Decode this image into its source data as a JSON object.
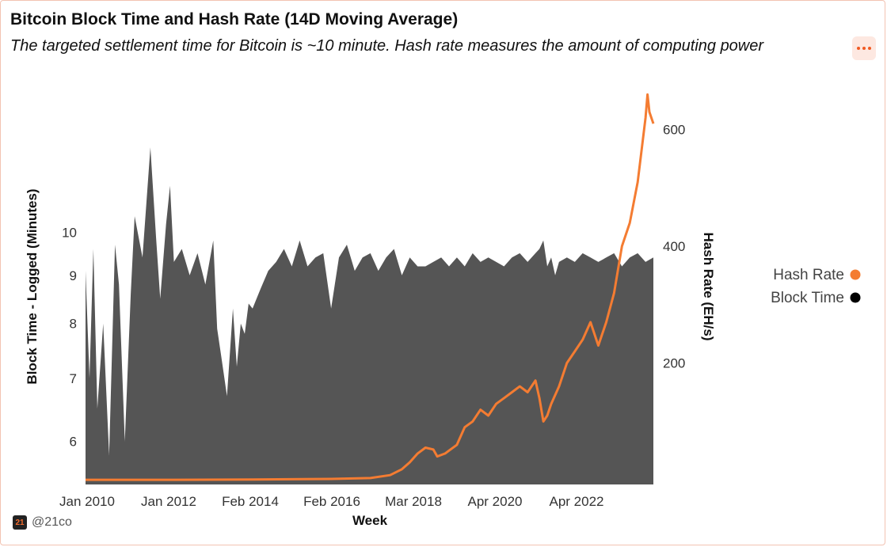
{
  "header": {
    "title": "Bitcoin Block Time and Hash Rate (14D Moving Average)",
    "subtitle": "The targeted settlement time for Bitcoin is ~10 minute. Hash rate measures the amount of computing power"
  },
  "menu": {
    "icon": "more-horizontal-icon",
    "accent": "#f15a22"
  },
  "footer": {
    "logo_text": "21",
    "handle": "@21co"
  },
  "chart_data": {
    "type": "area",
    "title": "Bitcoin Block Time and Hash Rate (14D Moving Average)",
    "xlabel": "Week",
    "ylabel_left": "Block Time - Logged (Minutes)",
    "ylabel_right": "Hash Rate (EH/s)",
    "x_ticks": [
      "Jan 2010",
      "Jan 2012",
      "Feb 2014",
      "Feb 2016",
      "Mar 2018",
      "Apr 2020",
      "Apr 2022"
    ],
    "x_range": [
      2009.75,
      2024.2
    ],
    "y_left_scale": "log",
    "y_left_range": [
      5.4,
      14.2
    ],
    "y_left_ticks": [
      6,
      7,
      8,
      9,
      10
    ],
    "y_right_range": [
      -8,
      670
    ],
    "y_right_ticks": [
      200,
      400,
      600
    ],
    "legend": [
      {
        "name": "Hash Rate",
        "color": "#f47c32"
      },
      {
        "name": "Block Time",
        "color": "#000000"
      }
    ],
    "series": [
      {
        "name": "Block Time",
        "axis": "left",
        "color": "#555555",
        "x": [
          2009.75,
          2009.85,
          2009.95,
          2010.05,
          2010.2,
          2010.35,
          2010.5,
          2010.6,
          2010.75,
          2010.9,
          2011.0,
          2011.2,
          2011.4,
          2011.55,
          2011.65,
          2011.8,
          2011.9,
          2012.0,
          2012.2,
          2012.4,
          2012.6,
          2012.8,
          2013.0,
          2013.1,
          2013.2,
          2013.35,
          2013.5,
          2013.6,
          2013.7,
          2013.8,
          2013.9,
          2014.0,
          2014.2,
          2014.4,
          2014.6,
          2014.8,
          2015.0,
          2015.2,
          2015.4,
          2015.6,
          2015.8,
          2016.0,
          2016.2,
          2016.4,
          2016.6,
          2016.8,
          2017.0,
          2017.2,
          2017.4,
          2017.6,
          2017.8,
          2018.0,
          2018.2,
          2018.4,
          2018.6,
          2018.8,
          2019.0,
          2019.2,
          2019.4,
          2019.6,
          2019.8,
          2020.0,
          2020.2,
          2020.4,
          2020.6,
          2020.8,
          2021.0,
          2021.2,
          2021.3,
          2021.4,
          2021.5,
          2021.6,
          2021.7,
          2021.8,
          2022.0,
          2022.2,
          2022.4,
          2022.6,
          2022.8,
          2023.0,
          2023.2,
          2023.4,
          2023.6,
          2023.8,
          2024.0,
          2024.2
        ],
        "values": [
          9.1,
          7.0,
          9.6,
          6.5,
          8.0,
          5.8,
          9.7,
          8.8,
          6.0,
          8.6,
          10.4,
          9.4,
          12.3,
          9.8,
          8.5,
          10.2,
          11.2,
          9.3,
          9.6,
          9.0,
          9.5,
          8.8,
          9.8,
          7.9,
          7.4,
          6.7,
          8.3,
          7.2,
          8.0,
          7.8,
          8.4,
          8.3,
          8.7,
          9.1,
          9.3,
          9.6,
          9.2,
          9.8,
          9.2,
          9.4,
          9.5,
          8.3,
          9.4,
          9.7,
          9.1,
          9.4,
          9.5,
          9.1,
          9.4,
          9.6,
          9.0,
          9.4,
          9.2,
          9.2,
          9.3,
          9.4,
          9.2,
          9.4,
          9.2,
          9.5,
          9.3,
          9.4,
          9.3,
          9.2,
          9.4,
          9.5,
          9.3,
          9.5,
          9.6,
          9.8,
          9.2,
          9.4,
          9.0,
          9.3,
          9.4,
          9.3,
          9.5,
          9.4,
          9.3,
          9.4,
          9.5,
          9.2,
          9.4,
          9.5,
          9.3,
          9.4
        ]
      },
      {
        "name": "Hash Rate",
        "axis": "right",
        "color": "#f47c32",
        "x": [
          2009.75,
          2012.0,
          2014.0,
          2016.0,
          2017.0,
          2017.5,
          2017.8,
          2018.0,
          2018.2,
          2018.4,
          2018.6,
          2018.7,
          2018.9,
          2019.0,
          2019.2,
          2019.4,
          2019.6,
          2019.8,
          2020.0,
          2020.2,
          2020.4,
          2020.6,
          2020.8,
          2021.0,
          2021.2,
          2021.3,
          2021.4,
          2021.5,
          2021.6,
          2021.8,
          2022.0,
          2022.2,
          2022.4,
          2022.6,
          2022.8,
          2022.9,
          2023.0,
          2023.2,
          2023.4,
          2023.6,
          2023.8,
          2024.0,
          2024.05,
          2024.1,
          2024.2
        ],
        "values": [
          0,
          0,
          0.5,
          1.5,
          3,
          8,
          18,
          30,
          45,
          55,
          52,
          40,
          45,
          50,
          60,
          90,
          100,
          120,
          110,
          130,
          140,
          150,
          160,
          150,
          170,
          140,
          100,
          110,
          130,
          160,
          200,
          220,
          240,
          270,
          230,
          250,
          270,
          320,
          400,
          440,
          510,
          620,
          660,
          630,
          610
        ]
      }
    ]
  }
}
